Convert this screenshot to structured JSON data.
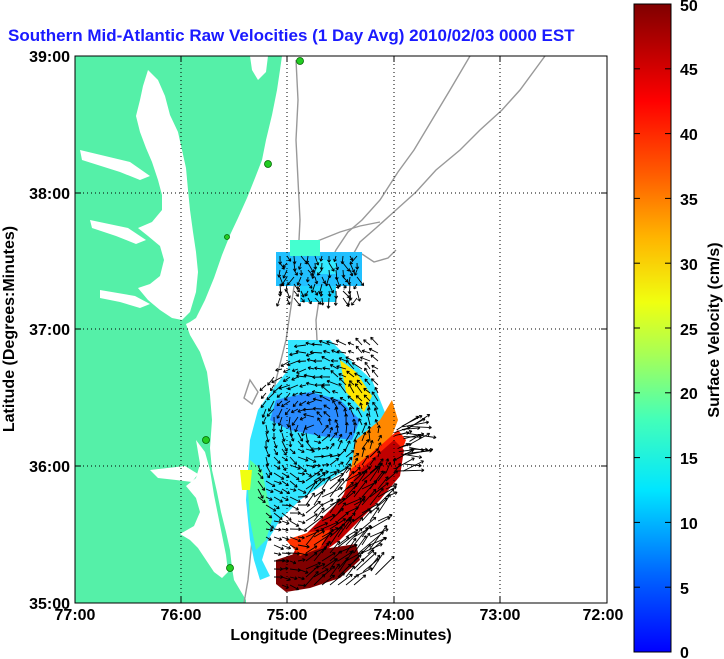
{
  "title": "Southern Mid-Atlantic Raw Velocities (1 Day Avg) 2010/02/03 0000 EST",
  "map": {
    "xlabel": "Longitude (Degrees:Minutes)",
    "ylabel": "Latitude (Degrees:Minutes)",
    "xlim": [
      -77,
      -72
    ],
    "ylim": [
      35,
      39
    ],
    "grid": true,
    "x_ticks": [
      "77:00",
      "76:00",
      "75:00",
      "74:00",
      "73:00",
      "72:00"
    ],
    "y_ticks": [
      "35:00",
      "36:00",
      "37:00",
      "38:00",
      "39:00"
    ],
    "land_color": "#55f0a8",
    "water_color": "#ffffff",
    "bathymetry_color": "#999999",
    "station_color": "#22cc22"
  },
  "colorbar": {
    "label": "Surface Velocity (cm/s)",
    "range": [
      0,
      50
    ],
    "tick_labels": [
      "0",
      "5",
      "10",
      "15",
      "20",
      "25",
      "30",
      "35",
      "40",
      "45",
      "50"
    ],
    "colormap": "jet"
  }
}
